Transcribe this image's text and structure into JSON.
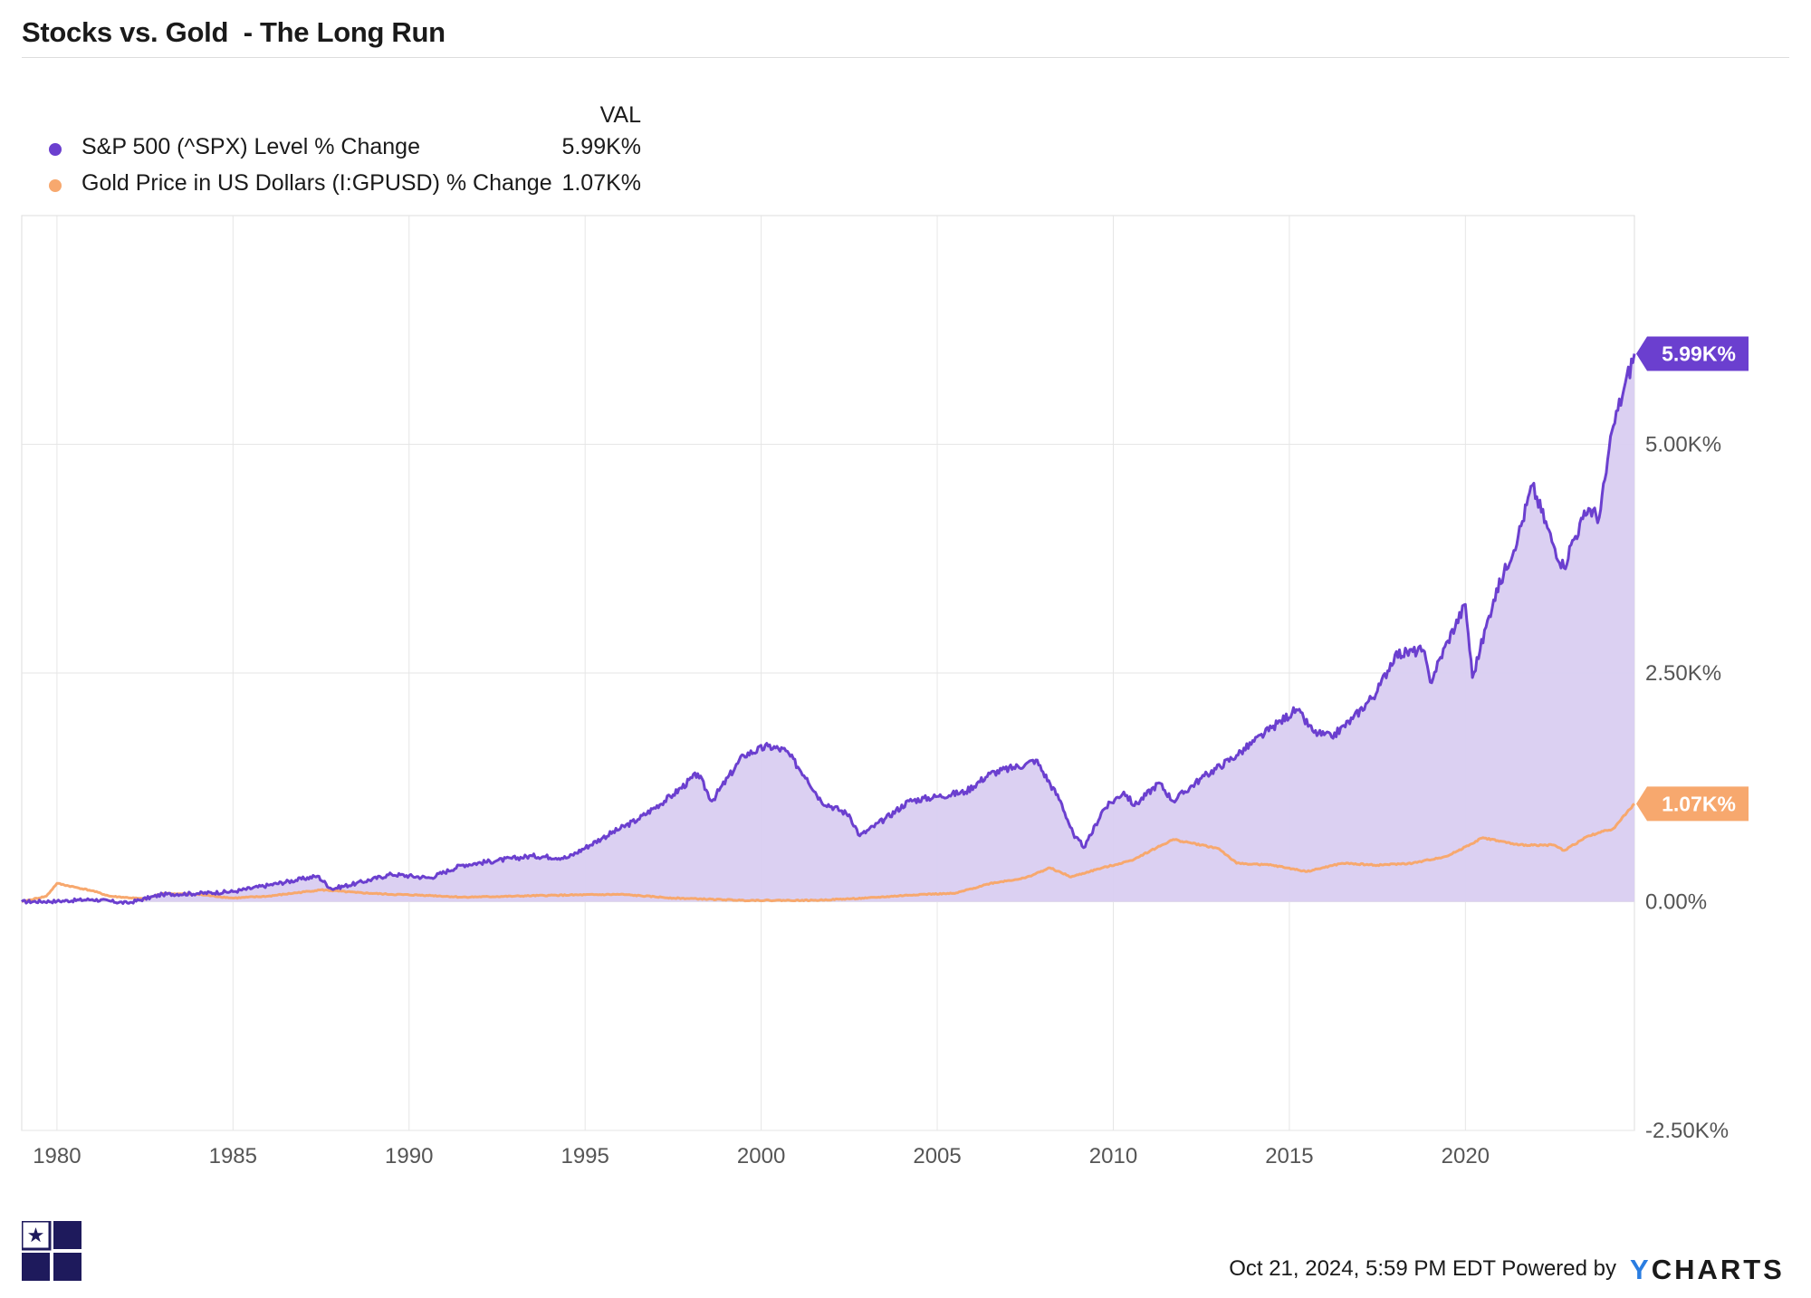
{
  "title": "Stocks vs. Gold  - The Long Run",
  "legend": {
    "value_header": "VAL",
    "items": [
      {
        "label": "S&P 500 (^SPX) Level % Change",
        "value": "5.99K%",
        "color": "#6b3fcf"
      },
      {
        "label": "Gold Price in US Dollars (I:GPUSD) % Change",
        "value": "1.07K%",
        "color": "#f7a86e"
      }
    ]
  },
  "footer": {
    "timestamp": "Oct 21, 2024, 5:59 PM EDT",
    "powered_by": "Powered by",
    "brand_y": "Y",
    "brand_rest": "CHARTS"
  },
  "colors": {
    "spx_line": "#6b3fcf",
    "spx_fill": "#d9cdf1",
    "gold_line": "#f7a86e",
    "grid": "#e6e6e6",
    "axis_text": "#555555",
    "logo": "#1e1a5c"
  },
  "chart_data": {
    "type": "area",
    "title": "Stocks vs. Gold  - The Long Run",
    "xlabel": "",
    "ylabel": "",
    "xlim": [
      1979.0,
      2024.8
    ],
    "ylim": [
      -2500,
      7500
    ],
    "x_ticks": [
      1980,
      1985,
      1990,
      1995,
      2000,
      2005,
      2010,
      2015,
      2020
    ],
    "y_ticks": [
      {
        "value": 5000,
        "label": "5.00K%"
      },
      {
        "value": 2500,
        "label": "2.50K%"
      },
      {
        "value": 0,
        "label": "0.00%"
      },
      {
        "value": -2500,
        "label": "-2.50K%"
      }
    ],
    "end_labels": [
      {
        "series": "S&P 500 (^SPX) Level % Change",
        "text": "5.99K%"
      },
      {
        "series": "Gold Price in US Dollars (I:GPUSD) % Change",
        "text": "1.07K%"
      }
    ],
    "series": [
      {
        "name": "S&P 500 (^SPX) Level % Change",
        "fill": true,
        "points": [
          [
            1979.0,
            0
          ],
          [
            1980.0,
            5
          ],
          [
            1981.0,
            25
          ],
          [
            1982.0,
            -15
          ],
          [
            1983.0,
            80
          ],
          [
            1984.0,
            90
          ],
          [
            1985.0,
            110
          ],
          [
            1986.0,
            180
          ],
          [
            1987.4,
            280
          ],
          [
            1987.8,
            140
          ],
          [
            1988.5,
            200
          ],
          [
            1989.5,
            300
          ],
          [
            1990.6,
            260
          ],
          [
            1991.5,
            400
          ],
          [
            1992.5,
            450
          ],
          [
            1993.5,
            500
          ],
          [
            1994.5,
            480
          ],
          [
            1995.5,
            700
          ],
          [
            1996.5,
            900
          ],
          [
            1997.5,
            1170
          ],
          [
            1998.2,
            1400
          ],
          [
            1998.6,
            1100
          ],
          [
            1999.5,
            1600
          ],
          [
            2000.2,
            1700
          ],
          [
            2000.7,
            1650
          ],
          [
            2001.3,
            1350
          ],
          [
            2001.7,
            1100
          ],
          [
            2002.5,
            950
          ],
          [
            2002.8,
            720
          ],
          [
            2003.5,
            900
          ],
          [
            2004.2,
            1100
          ],
          [
            2005.0,
            1150
          ],
          [
            2005.8,
            1200
          ],
          [
            2006.5,
            1400
          ],
          [
            2007.5,
            1500
          ],
          [
            2007.8,
            1550
          ],
          [
            2008.5,
            1100
          ],
          [
            2008.9,
            700
          ],
          [
            2009.2,
            600
          ],
          [
            2009.7,
            1000
          ],
          [
            2010.3,
            1200
          ],
          [
            2010.6,
            1050
          ],
          [
            2011.3,
            1300
          ],
          [
            2011.7,
            1100
          ],
          [
            2012.5,
            1350
          ],
          [
            2013.5,
            1600
          ],
          [
            2014.5,
            1900
          ],
          [
            2015.2,
            2100
          ],
          [
            2015.7,
            1850
          ],
          [
            2016.2,
            1800
          ],
          [
            2016.8,
            2000
          ],
          [
            2017.5,
            2300
          ],
          [
            2018.0,
            2700
          ],
          [
            2018.8,
            2750
          ],
          [
            2019.0,
            2400
          ],
          [
            2019.5,
            2850
          ],
          [
            2020.0,
            3250
          ],
          [
            2020.2,
            2450
          ],
          [
            2020.8,
            3300
          ],
          [
            2021.5,
            4000
          ],
          [
            2021.9,
            4550
          ],
          [
            2022.5,
            3900
          ],
          [
            2022.8,
            3650
          ],
          [
            2023.0,
            3900
          ],
          [
            2023.5,
            4300
          ],
          [
            2023.8,
            4200
          ],
          [
            2024.2,
            5200
          ],
          [
            2024.5,
            5600
          ],
          [
            2024.8,
            5990
          ]
        ]
      },
      {
        "name": "Gold Price in US Dollars (I:GPUSD) % Change",
        "fill": false,
        "points": [
          [
            1979.0,
            0
          ],
          [
            1979.7,
            60
          ],
          [
            1980.0,
            200
          ],
          [
            1980.5,
            160
          ],
          [
            1981.0,
            120
          ],
          [
            1981.5,
            60
          ],
          [
            1982.5,
            30
          ],
          [
            1983.0,
            90
          ],
          [
            1984.0,
            80
          ],
          [
            1985.0,
            40
          ],
          [
            1986.0,
            60
          ],
          [
            1987.5,
            130
          ],
          [
            1988.5,
            100
          ],
          [
            1989.5,
            80
          ],
          [
            1990.5,
            70
          ],
          [
            1991.5,
            50
          ],
          [
            1993.0,
            60
          ],
          [
            1994.0,
            70
          ],
          [
            1996.0,
            80
          ],
          [
            1997.5,
            40
          ],
          [
            1999.5,
            15
          ],
          [
            2001.5,
            15
          ],
          [
            2003.0,
            40
          ],
          [
            2004.5,
            80
          ],
          [
            2005.5,
            90
          ],
          [
            2006.5,
            200
          ],
          [
            2007.5,
            260
          ],
          [
            2008.2,
            370
          ],
          [
            2008.8,
            270
          ],
          [
            2009.5,
            350
          ],
          [
            2010.5,
            450
          ],
          [
            2011.7,
            680
          ],
          [
            2012.5,
            620
          ],
          [
            2013.0,
            580
          ],
          [
            2013.5,
            420
          ],
          [
            2014.5,
            400
          ],
          [
            2015.5,
            330
          ],
          [
            2016.5,
            420
          ],
          [
            2017.5,
            400
          ],
          [
            2018.5,
            420
          ],
          [
            2019.5,
            500
          ],
          [
            2020.5,
            700
          ],
          [
            2021.5,
            620
          ],
          [
            2022.5,
            620
          ],
          [
            2022.8,
            560
          ],
          [
            2023.5,
            720
          ],
          [
            2024.2,
            800
          ],
          [
            2024.8,
            1070
          ]
        ]
      }
    ]
  }
}
